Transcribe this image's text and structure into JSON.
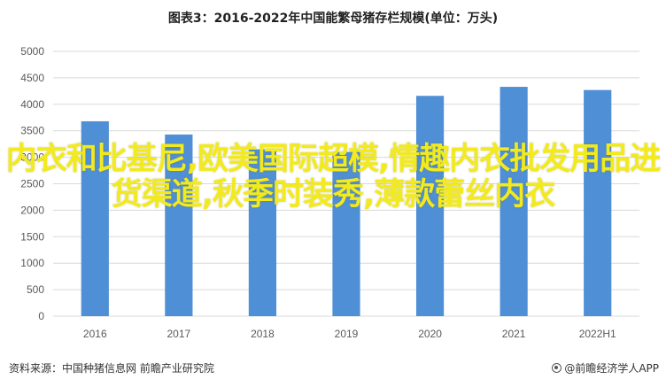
{
  "chart_data": {
    "type": "bar",
    "title": "图表3：2016-2022年中国能繁母猪存栏规模(单位：万头)",
    "categories": [
      "2016",
      "2017",
      "2018",
      "2019",
      "2020",
      "2021",
      "2022H1"
    ],
    "values": [
      3680,
      3430,
      3150,
      3100,
      4160,
      4330,
      4270
    ],
    "ylim": [
      0,
      5000
    ],
    "yticks": [
      0,
      500,
      1000,
      1500,
      2000,
      2500,
      3000,
      3500,
      4000,
      4500,
      5000
    ],
    "grid": true,
    "bar_color": "#4f8fd6",
    "grid_color": "#d9d9d9"
  },
  "overlay_text": "内衣和比基尼,欧美国际超模,情趣内衣批发用品进货渠道,秋季时装秀,薄款蕾丝内衣",
  "overlay_color": "#f2ea1d",
  "footer": {
    "source": "资料来源：中国种猪信息网 前瞻产业研究院",
    "brand": "@前瞻经济学人APP"
  }
}
